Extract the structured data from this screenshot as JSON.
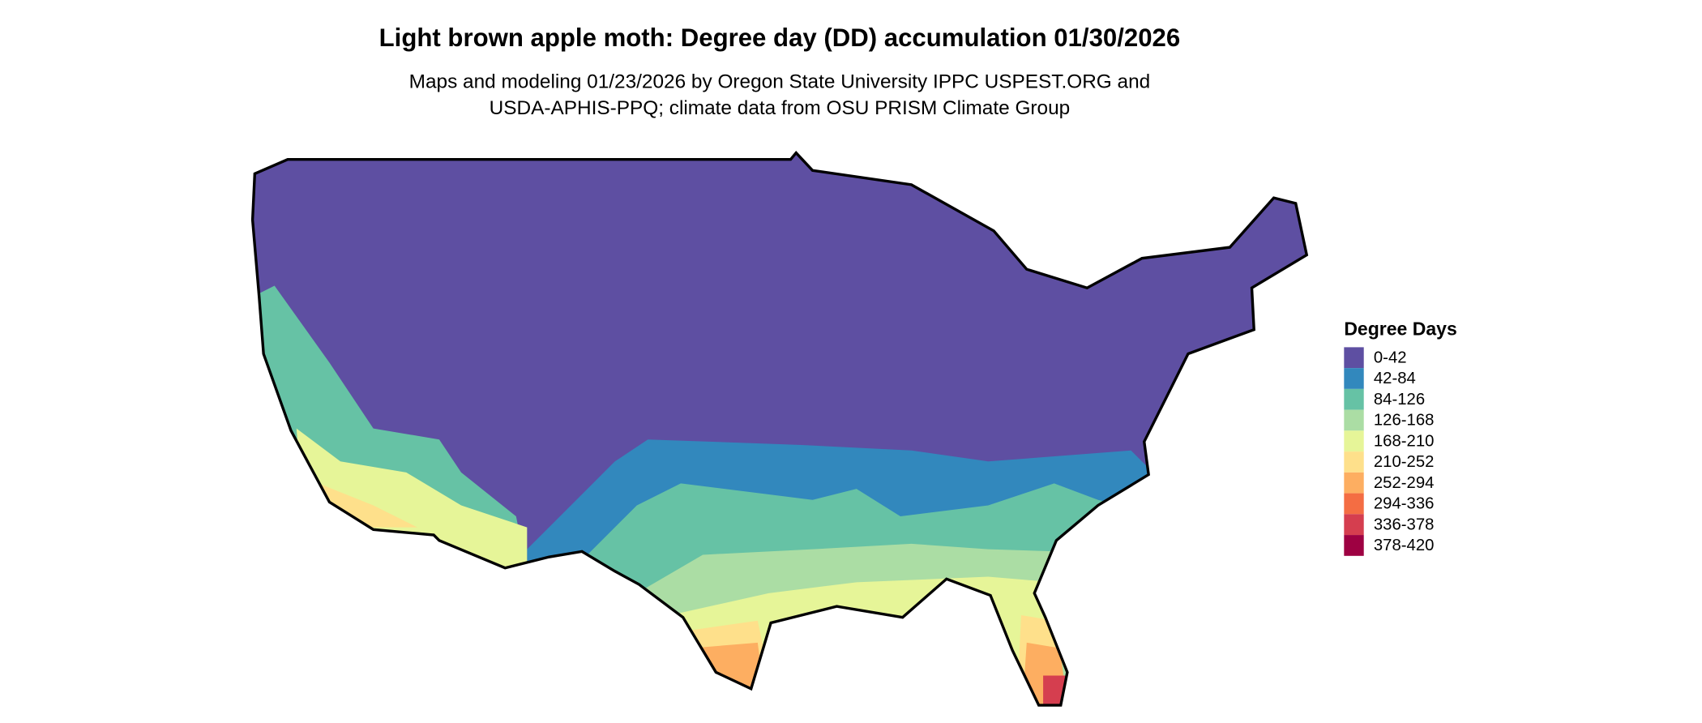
{
  "title": "Light brown apple moth: Degree day (DD) accumulation 01/30/2026",
  "subtitle": [
    "Maps and modeling 01/23/2026 by Oregon State University IPPC USPEST.ORG and",
    "USDA-APHIS-PPQ; climate data from OSU PRISM Climate Group"
  ],
  "legend": {
    "title": "Degree Days",
    "items": [
      {
        "label": "0-42",
        "color": "#5e4fa2"
      },
      {
        "label": "42-84",
        "color": "#3288bd"
      },
      {
        "label": "84-126",
        "color": "#66c2a5"
      },
      {
        "label": "126-168",
        "color": "#abdda4"
      },
      {
        "label": "168-210",
        "color": "#e6f598"
      },
      {
        "label": "210-252",
        "color": "#fee08b"
      },
      {
        "label": "252-294",
        "color": "#fdae61"
      },
      {
        "label": "294-336",
        "color": "#f46d43"
      },
      {
        "label": "336-378",
        "color": "#d53e4f"
      },
      {
        "label": "378-420",
        "color": "#9e0142"
      }
    ]
  }
}
